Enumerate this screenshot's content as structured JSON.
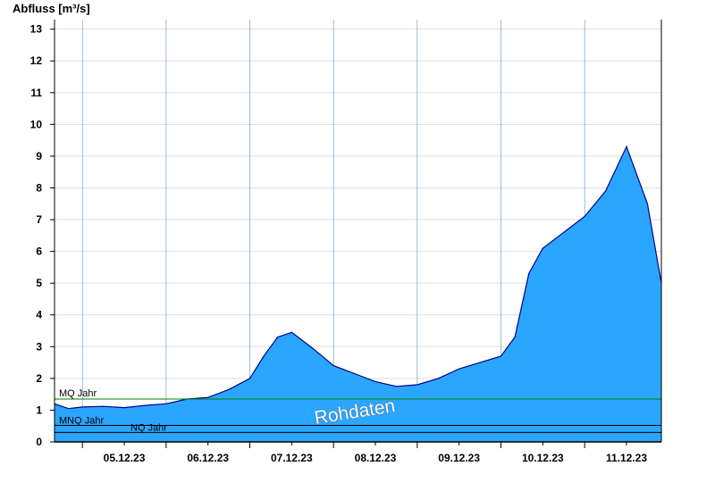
{
  "chart_data": {
    "type": "area",
    "ylabel": "Abfluss [m³/s]",
    "ylim": [
      0,
      13.3
    ],
    "yticks": [
      0,
      1,
      2,
      3,
      4,
      5,
      6,
      7,
      8,
      9,
      10,
      11,
      12,
      13
    ],
    "xlim": [
      "2023-12-04T16:00",
      "2023-12-11T22:00"
    ],
    "xticks": [
      {
        "label": "05.12.23",
        "at": "2023-12-05T12:00"
      },
      {
        "label": "06.12.23",
        "at": "2023-12-06T12:00"
      },
      {
        "label": "07.12.23",
        "at": "2023-12-07T12:00"
      },
      {
        "label": "08.12.23",
        "at": "2023-12-08T12:00"
      },
      {
        "label": "09.12.23",
        "at": "2023-12-09T12:00"
      },
      {
        "label": "10.12.23",
        "at": "2023-12-10T12:00"
      },
      {
        "label": "11.12.23",
        "at": "2023-12-11T12:00"
      }
    ],
    "grid": true,
    "colors": {
      "fill": "#2aa6ff",
      "line": "#00008b",
      "mq": "#008000",
      "mnq": "#000000",
      "nq": "#000000",
      "grid": "#dddddd"
    },
    "series": [
      {
        "x": [
          "2023-12-04T16:00",
          "2023-12-04T20:00",
          "2023-12-05T00:00",
          "2023-12-05T06:00",
          "2023-12-05T12:00",
          "2023-12-05T18:00",
          "2023-12-06T00:00",
          "2023-12-06T06:00",
          "2023-12-06T12:00",
          "2023-12-06T18:00",
          "2023-12-07T00:00",
          "2023-12-07T04:00",
          "2023-12-07T08:00",
          "2023-12-07T12:00",
          "2023-12-07T18:00",
          "2023-12-08T00:00",
          "2023-12-08T06:00",
          "2023-12-08T12:00",
          "2023-12-08T18:00",
          "2023-12-09T00:00",
          "2023-12-09T06:00",
          "2023-12-09T12:00",
          "2023-12-09T18:00",
          "2023-12-10T00:00",
          "2023-12-10T04:00",
          "2023-12-10T08:00",
          "2023-12-10T12:00",
          "2023-12-10T18:00",
          "2023-12-11T00:00",
          "2023-12-11T06:00",
          "2023-12-11T12:00",
          "2023-12-11T18:00",
          "2023-12-11T22:00"
        ],
        "values": [
          1.2,
          1.05,
          1.1,
          1.12,
          1.08,
          1.15,
          1.2,
          1.35,
          1.4,
          1.65,
          2.0,
          2.7,
          3.3,
          3.45,
          2.95,
          2.4,
          2.15,
          1.9,
          1.75,
          1.8,
          2.0,
          2.3,
          2.5,
          2.7,
          3.3,
          5.3,
          6.1,
          6.6,
          7.1,
          7.9,
          9.3,
          7.5,
          5.0
        ]
      }
    ],
    "reference_lines": [
      {
        "label": "MQ Jahr",
        "value": 1.35
      },
      {
        "label": "MNQ Jahr",
        "value": 0.52
      },
      {
        "label": "NQ Jahr",
        "value": 0.3
      }
    ],
    "watermark": "Rohdaten"
  }
}
